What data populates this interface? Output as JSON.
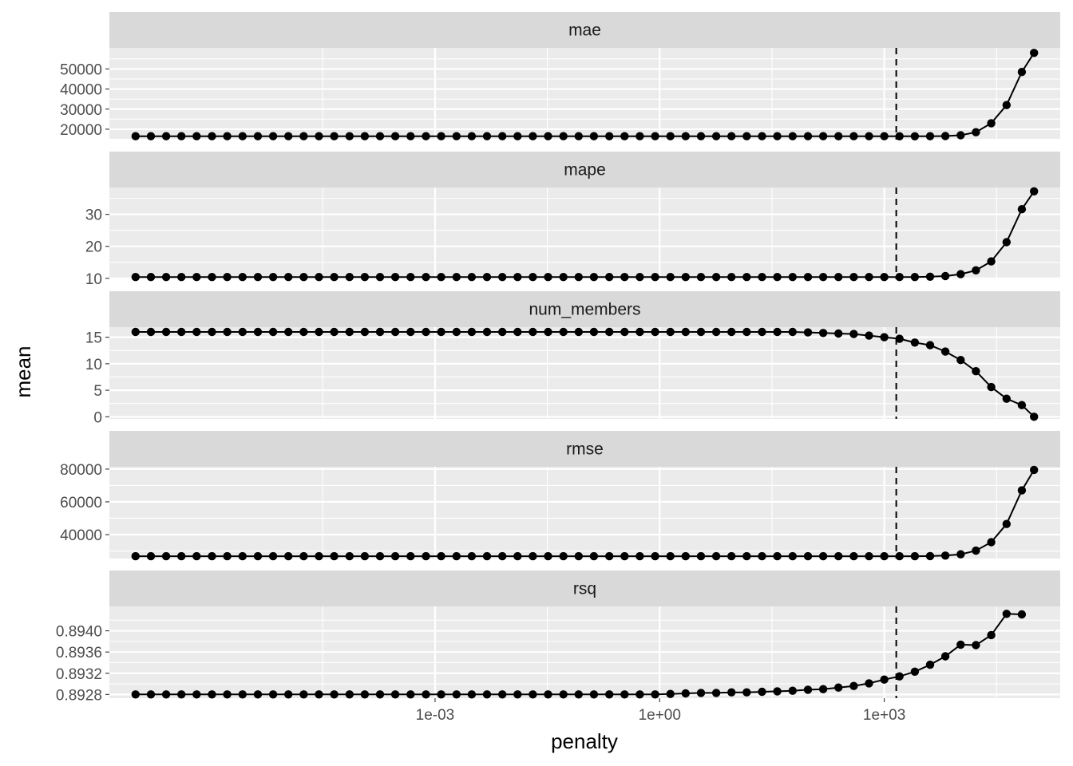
{
  "chart_data": {
    "type": "line",
    "xlabel": "penalty",
    "ylabel": "mean",
    "x_scale": "log10",
    "x_ticks": [
      {
        "value": 0.001,
        "label": "1e-03"
      },
      {
        "value": 1,
        "label": "1e+00"
      },
      {
        "value": 1000,
        "label": "1e+03"
      }
    ],
    "x_log10": [
      -7,
      -6.796,
      -6.592,
      -6.388,
      -6.184,
      -5.98,
      -5.776,
      -5.571,
      -5.367,
      -5.163,
      -4.959,
      -4.755,
      -4.551,
      -4.347,
      -4.143,
      -3.939,
      -3.735,
      -3.531,
      -3.327,
      -3.122,
      -2.918,
      -2.714,
      -2.51,
      -2.306,
      -2.102,
      -1.898,
      -1.694,
      -1.49,
      -1.286,
      -1.082,
      -0.878,
      -0.673,
      -0.469,
      -0.265,
      -0.061,
      0.143,
      0.347,
      0.551,
      0.755,
      0.959,
      1.163,
      1.367,
      1.571,
      1.776,
      1.98,
      2.184,
      2.388,
      2.592,
      2.796,
      3,
      3.204,
      3.408,
      3.612,
      3.816,
      4.02,
      4.224,
      4.429,
      4.633,
      4.837,
      5
    ],
    "selected_penalty_log10": 3.16,
    "selected_line": "dashed vertical",
    "panels": [
      {
        "name": "mae",
        "ylim": [
          14800,
          60500
        ],
        "ticks": [
          20000,
          30000,
          40000,
          50000
        ],
        "tick_labels": [
          "20000",
          "30000",
          "40000",
          "50000"
        ],
        "values": [
          16500,
          16500,
          16500,
          16500,
          16500,
          16500,
          16500,
          16500,
          16500,
          16500,
          16500,
          16500,
          16500,
          16500,
          16500,
          16500,
          16500,
          16500,
          16500,
          16500,
          16500,
          16500,
          16500,
          16500,
          16500,
          16500,
          16500,
          16500,
          16500,
          16500,
          16500,
          16500,
          16500,
          16500,
          16500,
          16500,
          16500,
          16500,
          16500,
          16500,
          16500,
          16500,
          16500,
          16500,
          16500,
          16500,
          16500,
          16500,
          16500,
          16500,
          16450,
          16450,
          16500,
          16600,
          17000,
          18500,
          23000,
          32000,
          48500,
          58000
        ]
      },
      {
        "name": "mape",
        "ylim": [
          9.7,
          38.4
        ],
        "ticks": [
          10,
          20,
          30
        ],
        "tick_labels": [
          "10",
          "20",
          "30"
        ],
        "values": [
          10.4,
          10.4,
          10.4,
          10.4,
          10.4,
          10.4,
          10.4,
          10.4,
          10.4,
          10.4,
          10.4,
          10.4,
          10.4,
          10.4,
          10.4,
          10.4,
          10.4,
          10.4,
          10.4,
          10.4,
          10.4,
          10.4,
          10.4,
          10.4,
          10.4,
          10.4,
          10.4,
          10.4,
          10.4,
          10.4,
          10.4,
          10.4,
          10.4,
          10.4,
          10.4,
          10.4,
          10.4,
          10.4,
          10.4,
          10.4,
          10.4,
          10.4,
          10.4,
          10.4,
          10.4,
          10.4,
          10.4,
          10.4,
          10.4,
          10.4,
          10.4,
          10.4,
          10.5,
          10.7,
          11.3,
          12.5,
          15.3,
          21.3,
          31.6,
          37.2
        ]
      },
      {
        "name": "num_members",
        "ylim": [
          -0.4,
          16.9
        ],
        "ticks": [
          0,
          5,
          10,
          15
        ],
        "tick_labels": [
          "0",
          "5",
          "10",
          "15"
        ],
        "values": [
          16,
          16,
          16,
          16,
          16,
          16,
          16,
          16,
          16,
          16,
          16,
          16,
          16,
          16,
          16,
          16,
          16,
          16,
          16,
          16,
          16,
          16,
          16,
          16,
          16,
          16,
          16,
          16,
          16,
          16,
          16,
          16,
          16,
          16,
          16,
          16,
          16,
          16,
          16,
          16,
          16,
          16,
          16,
          16,
          15.9,
          15.8,
          15.7,
          15.6,
          15.3,
          15,
          14.7,
          14,
          13.5,
          12.3,
          10.7,
          8.6,
          5.6,
          3.4,
          2.2,
          0
        ]
      },
      {
        "name": "rmse",
        "ylim": [
          25400,
          81400
        ],
        "ticks": [
          40000,
          60000,
          80000
        ],
        "tick_labels": [
          "40000",
          "60000",
          "80000"
        ],
        "values": [
          26800,
          26800,
          26800,
          26800,
          26800,
          26800,
          26800,
          26800,
          26800,
          26800,
          26800,
          26800,
          26800,
          26800,
          26800,
          26800,
          26800,
          26800,
          26800,
          26800,
          26800,
          26800,
          26800,
          26800,
          26800,
          26800,
          26800,
          26800,
          26800,
          26800,
          26800,
          26800,
          26800,
          26800,
          26800,
          26800,
          26800,
          26800,
          26800,
          26800,
          26800,
          26800,
          26800,
          26800,
          26800,
          26800,
          26800,
          26800,
          26800,
          26800,
          26800,
          26800,
          26900,
          27200,
          28000,
          30200,
          35400,
          46500,
          67000,
          79500
        ]
      },
      {
        "name": "rsq",
        "ylim": [
          0.89273,
          0.89446
        ],
        "ticks": [
          0.8928,
          0.8932,
          0.8936,
          0.894
        ],
        "tick_labels": [
          "0.8928",
          "0.8932",
          "0.8936",
          "0.8940"
        ],
        "values": [
          0.8928,
          0.8928,
          0.8928,
          0.8928,
          0.8928,
          0.8928,
          0.8928,
          0.8928,
          0.8928,
          0.8928,
          0.8928,
          0.8928,
          0.8928,
          0.8928,
          0.8928,
          0.8928,
          0.8928,
          0.8928,
          0.8928,
          0.8928,
          0.8928,
          0.8928,
          0.8928,
          0.8928,
          0.8928,
          0.8928,
          0.8928,
          0.8928,
          0.8928,
          0.8928,
          0.8928,
          0.8928,
          0.8928,
          0.8928,
          0.8928,
          0.89281,
          0.89282,
          0.89283,
          0.89283,
          0.89284,
          0.89284,
          0.89285,
          0.89286,
          0.89287,
          0.89289,
          0.8929,
          0.89293,
          0.89296,
          0.89301,
          0.89308,
          0.89314,
          0.89323,
          0.89336,
          0.89352,
          0.89374,
          0.89373,
          0.89392,
          0.89432,
          0.89431,
          null
        ]
      }
    ]
  }
}
